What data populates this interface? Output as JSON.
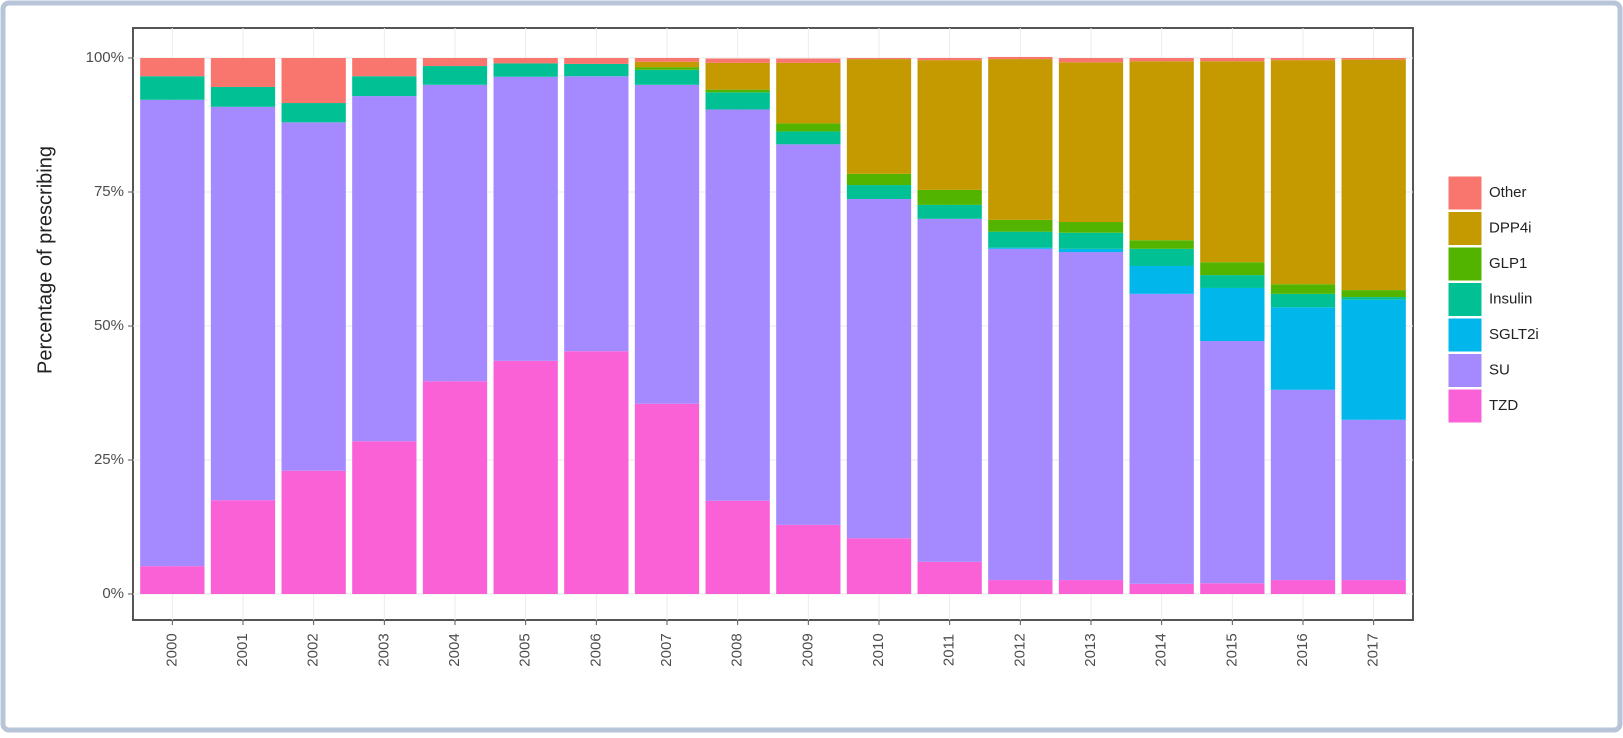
{
  "chart_data": {
    "type": "stacked-bar",
    "y_label": "Percentage of prescribing",
    "categories": [
      "2000",
      "2001",
      "2002",
      "2003",
      "2004",
      "2005",
      "2006",
      "2007",
      "2008",
      "2009",
      "2010",
      "2011",
      "2012",
      "2013",
      "2014",
      "2015",
      "2016",
      "2017"
    ],
    "series": [
      {
        "name": "TZD",
        "color": "#fb61d7",
        "values": [
          5.2,
          17.5,
          23,
          28.5,
          39.7,
          43.5,
          45.3,
          35.5,
          17.4,
          12.9,
          10.4,
          6,
          2.6,
          2.6,
          1.9,
          2,
          2.6,
          2.6
        ]
      },
      {
        "name": "SU",
        "color": "#a58aff",
        "values": [
          87,
          73.4,
          65,
          64.4,
          55.3,
          53,
          51.3,
          59.5,
          73,
          71,
          63.3,
          64,
          61.8,
          61.2,
          54.1,
          45.2,
          35.5,
          29.9
        ]
      },
      {
        "name": "SGLT2i",
        "color": "#00b6eb",
        "values": [
          0,
          0,
          0,
          0,
          0,
          0,
          0,
          0,
          0,
          0,
          0,
          0,
          0.2,
          0.6,
          5.2,
          9.9,
          15.4,
          22.4
        ]
      },
      {
        "name": "Insulin",
        "color": "#00c094",
        "values": [
          4.4,
          3.7,
          3.6,
          3.7,
          3.5,
          2.5,
          2.3,
          2.8,
          3.2,
          2.4,
          2.6,
          2.6,
          3,
          3,
          3.2,
          2.4,
          2.5,
          0.5
        ]
      },
      {
        "name": "GLP1",
        "color": "#53b400",
        "values": [
          0,
          0,
          0,
          0,
          0,
          0,
          0,
          0.5,
          0.5,
          1.5,
          2.1,
          2.8,
          2.2,
          2,
          1.6,
          2.4,
          1.8,
          1.3
        ]
      },
      {
        "name": "DPP4i",
        "color": "#c49a00",
        "values": [
          0,
          0,
          0,
          0,
          0,
          0,
          0,
          1,
          5,
          11.3,
          21.4,
          24.2,
          30,
          29.8,
          33.4,
          37.5,
          41.8,
          43
        ]
      },
      {
        "name": "Other",
        "color": "#f8766d",
        "values": [
          3.4,
          5.4,
          8.4,
          3.4,
          1.5,
          1,
          1.1,
          0.7,
          0.8,
          0.8,
          0.2,
          0.4,
          0.4,
          0.8,
          0.6,
          0.6,
          0.4,
          0.3
        ]
      }
    ],
    "ylim": [
      -4.85,
      105.6
    ],
    "yticks": [
      {
        "value": 0,
        "label": "0%"
      },
      {
        "value": 25,
        "label": "25%"
      },
      {
        "value": 50,
        "label": "50%"
      },
      {
        "value": 75,
        "label": "75%"
      },
      {
        "value": 100,
        "label": "100%"
      }
    ],
    "grid": true
  }
}
